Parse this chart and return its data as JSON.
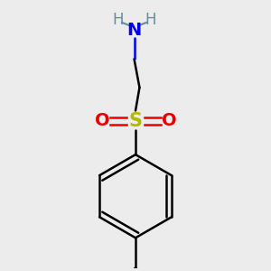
{
  "bg_color": "#ececec",
  "atom_colors": {
    "C": "#000000",
    "H": "#5f8fa0",
    "N": "#0000ee",
    "S": "#b8b800",
    "O": "#ee0000"
  },
  "figsize": [
    3.0,
    3.0
  ],
  "dpi": 100,
  "xlim": [
    -1.6,
    1.6
  ],
  "ylim": [
    -2.6,
    2.0
  ]
}
